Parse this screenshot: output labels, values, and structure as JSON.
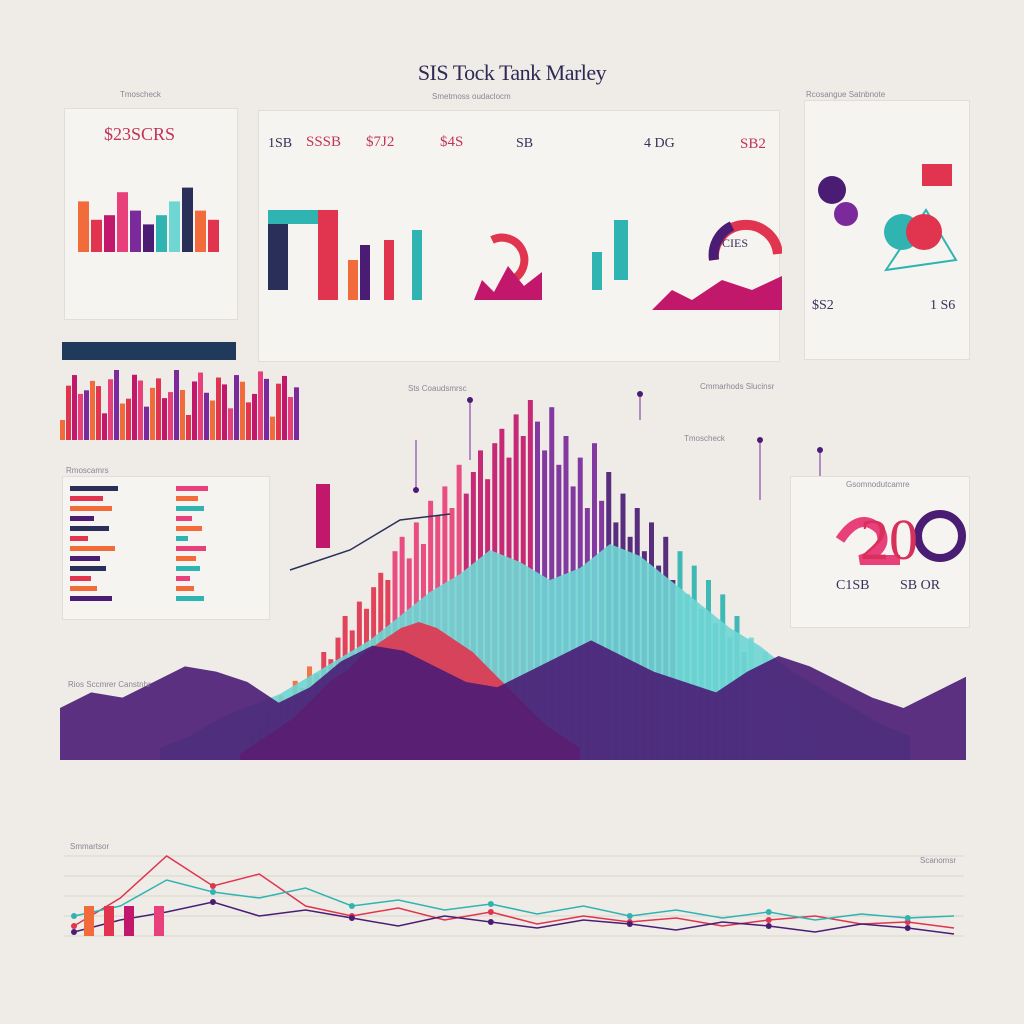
{
  "title": "SIS Tock Tank Marley",
  "colors": {
    "red": "#e0344f",
    "orange": "#f26b3a",
    "magenta": "#c2186b",
    "pink": "#e8407a",
    "purple": "#4a1c74",
    "violet": "#7a2a9a",
    "teal": "#2fb4b2",
    "cyan": "#6fd6d4",
    "navy": "#2a2f5a",
    "background": "#efece7"
  },
  "labels": {
    "top_left_header": "Tmoscheck",
    "top_center_header": "Smetmoss oudaclocm",
    "top_right_header": "Rcosangue Satnbnote",
    "big_stat_left": "$23SCRS",
    "stat_a": "1SB",
    "stat_b": "SSSB",
    "stat_c": "$7J2",
    "stat_d": "$4S",
    "stat_e": "SB",
    "stat_f": "4 DG",
    "stat_g": "SB2",
    "ring_stat": "CIES",
    "mid_stat_left": "$S2",
    "mid_stat_right": "1 S6",
    "mid_panel_a": "Sts Coaudsmrsc",
    "mid_panel_b": "Tmoscheck",
    "mid_panel_c": "Cmmarhods Slucinsr",
    "right_block_header": "Gsomnodutcamre",
    "big_right_number": "20",
    "right_stat_a": "C1SB",
    "right_stat_b": "SB OR",
    "left_block_header": "Rmoscamrs",
    "footer_left": "Rios Sccmrer Canstnhr",
    "bottom_header": "Smmartsor",
    "line_note": "Scanomsr"
  },
  "chart_data": {
    "type": "bar",
    "title": "",
    "xlabel": "",
    "ylabel": "",
    "ylim": [
      0,
      100
    ],
    "grid": false,
    "main_bars": {
      "x": [
        1,
        2,
        3,
        4,
        5,
        6,
        7,
        8,
        9,
        10,
        11,
        12,
        13,
        14,
        15,
        16,
        17,
        18,
        19,
        20,
        21,
        22,
        23,
        24,
        25,
        26,
        27,
        28,
        29,
        30,
        31,
        32,
        33,
        34,
        35,
        36,
        37,
        38,
        39,
        40,
        41,
        42,
        43,
        44,
        45,
        46,
        47,
        48,
        49,
        50,
        51,
        52,
        53,
        54,
        55,
        56,
        57,
        58,
        59,
        60,
        61,
        62,
        63,
        64,
        65,
        66,
        67,
        68,
        69,
        70,
        71,
        72,
        73,
        74,
        75,
        76,
        77,
        78,
        79,
        80
      ],
      "values": [
        8,
        10,
        14,
        12,
        18,
        16,
        22,
        20,
        26,
        24,
        30,
        28,
        34,
        40,
        36,
        44,
        42,
        48,
        52,
        50,
        58,
        62,
        56,
        66,
        60,
        72,
        68,
        76,
        70,
        82,
        74,
        80,
        86,
        78,
        88,
        92,
        84,
        96,
        90,
        100,
        94,
        86,
        98,
        82,
        90,
        76,
        84,
        70,
        88,
        72,
        80,
        66,
        74,
        62,
        70,
        58,
        66,
        54,
        62,
        50,
        58,
        46,
        54,
        42,
        50,
        38,
        46,
        34,
        40,
        30,
        34,
        26,
        30,
        22,
        26,
        18,
        22,
        14,
        16,
        10
      ]
    },
    "area_red": [
      2,
      6,
      10,
      14,
      20,
      26,
      30,
      36,
      40,
      44,
      46,
      44,
      40,
      36,
      30,
      24,
      18,
      12,
      8,
      4
    ],
    "area_purple": [
      20,
      26,
      24,
      30,
      36,
      34,
      30,
      22,
      28,
      38,
      44,
      42,
      36,
      30,
      28,
      34,
      40,
      46,
      40,
      34,
      30,
      26,
      34,
      40,
      36,
      30,
      24,
      20,
      26,
      32
    ],
    "area_teal": [
      4,
      8,
      14,
      18,
      22,
      28,
      34,
      40,
      48,
      56,
      62,
      70,
      66,
      60,
      64,
      72,
      68,
      60,
      52,
      44,
      38,
      30,
      24,
      18,
      12,
      8
    ],
    "line_series": [
      {
        "values": [
          20,
          48,
          90,
          60,
          72,
          40,
          30,
          38,
          26,
          34,
          22,
          30,
          24,
          28,
          20,
          26,
          30,
          22,
          24,
          18
        ]
      },
      {
        "values": [
          30,
          40,
          66,
          54,
          48,
          58,
          40,
          46,
          36,
          42,
          32,
          40,
          30,
          36,
          28,
          34,
          26,
          32,
          28,
          30
        ]
      },
      {
        "values": [
          14,
          26,
          34,
          44,
          30,
          36,
          28,
          20,
          30,
          24,
          18,
          26,
          22,
          16,
          24,
          20,
          14,
          22,
          18,
          12
        ]
      }
    ],
    "top_bars_left": [
      55,
      35,
      40,
      65,
      45,
      30,
      40,
      55,
      70,
      45,
      35
    ],
    "top_bars_center": [
      90,
      55,
      25,
      30,
      45,
      60,
      40,
      20,
      35,
      50,
      65,
      45,
      30,
      55,
      70,
      40,
      25,
      50
    ],
    "left_hbars": [
      80,
      55,
      70,
      40,
      65,
      30,
      75,
      50,
      60,
      35,
      45,
      70
    ]
  }
}
